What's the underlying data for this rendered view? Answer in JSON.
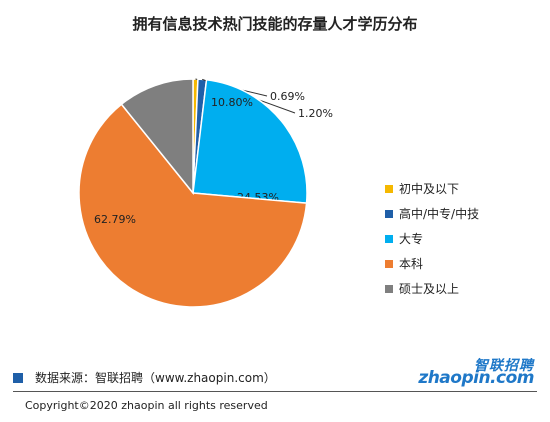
{
  "chart_data": {
    "type": "pie",
    "title": "拥有信息技术热门技能的存量人才学历分布",
    "categories": [
      "初中及以下",
      "高中/中专/中技",
      "大专",
      "本科",
      "硕士及以上"
    ],
    "values": [
      0.69,
      1.2,
      24.53,
      62.79,
      10.8
    ],
    "value_labels": [
      "0.69%",
      "1.20%",
      "24.53%",
      "62.79%",
      "10.80%"
    ],
    "colors": [
      "#f5b800",
      "#1f5fa8",
      "#00aeef",
      "#ed7d31",
      "#7f7f7f"
    ],
    "legend_position": "right"
  },
  "source": "数据来源：智联招聘（www.zhaopin.com）",
  "logo": {
    "cn": "智联招聘",
    "en": "zhaopin.com"
  },
  "copyright": "Copyright©2020 zhaopin all rights reserved"
}
